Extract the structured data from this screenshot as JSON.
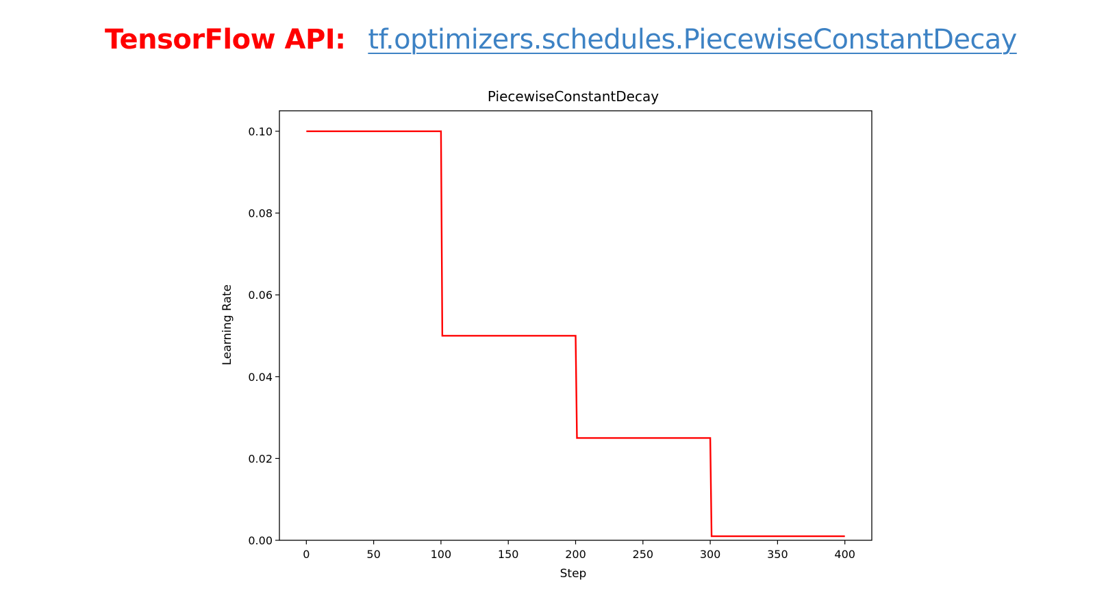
{
  "header": {
    "api_label": "TensorFlow API:",
    "api_link": "tf.optimizers.schedules.PiecewiseConstantDecay",
    "label_color": "#ff0000",
    "link_color": "#3d82c4"
  },
  "chart_data": {
    "type": "line",
    "title": "PiecewiseConstantDecay",
    "xlabel": "Step",
    "ylabel": "Learning Rate",
    "xlim": [
      -20,
      420
    ],
    "ylim": [
      0.0,
      0.105
    ],
    "xticks": [
      0,
      50,
      100,
      150,
      200,
      250,
      300,
      350,
      400
    ],
    "xtick_labels": [
      "0",
      "50",
      "100",
      "150",
      "200",
      "250",
      "300",
      "350",
      "400"
    ],
    "yticks": [
      0.0,
      0.02,
      0.04,
      0.06,
      0.08,
      0.1
    ],
    "ytick_labels": [
      "0.00",
      "0.02",
      "0.04",
      "0.06",
      "0.08",
      "0.10"
    ],
    "grid": false,
    "series": [
      {
        "color": "#ff0000",
        "x": [
          0,
          100,
          101,
          200,
          201,
          300,
          301,
          400
        ],
        "y": [
          0.1,
          0.1,
          0.05,
          0.05,
          0.025,
          0.025,
          0.001,
          0.001
        ]
      }
    ]
  }
}
